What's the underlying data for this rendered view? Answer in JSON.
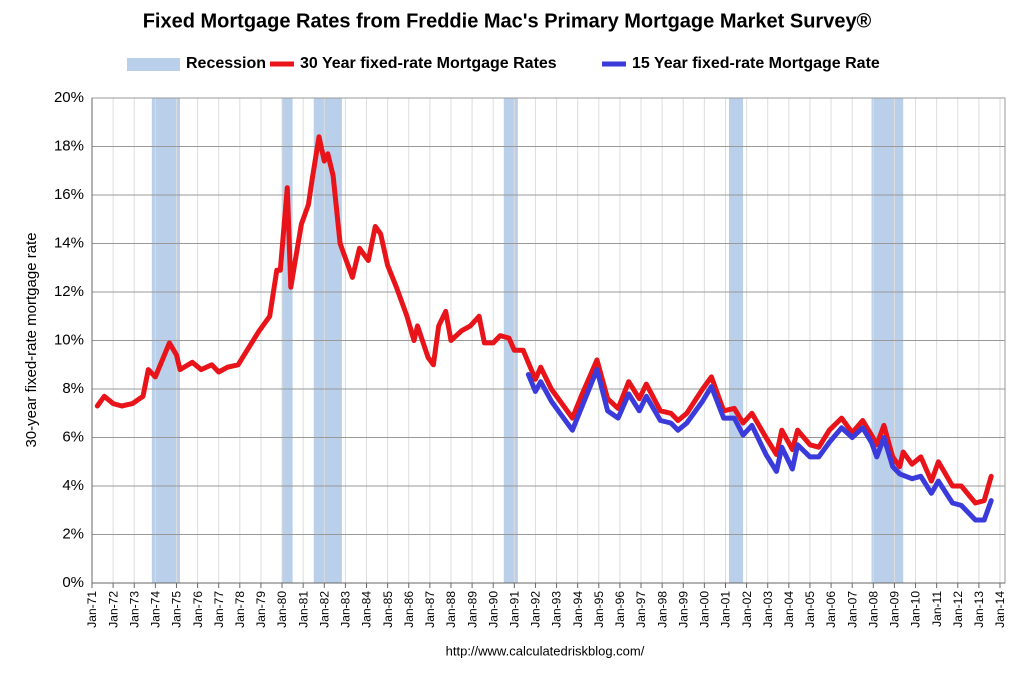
{
  "chart_data": {
    "type": "line",
    "title": "Fixed Mortgage Rates from Freddie Mac's Primary Mortgage Market Survey®",
    "y_axis_label": "30-year fixed-rate mortgage rate",
    "source": "http://www.calculatedriskblog.com/",
    "recession_label": "Recession",
    "recession_color": "#b9cfea",
    "recessions": [
      [
        "1973-11",
        "1975-03"
      ],
      [
        "1980-01",
        "1980-07"
      ],
      [
        "1981-07",
        "1982-11"
      ],
      [
        "1990-07",
        "1991-03"
      ],
      [
        "2001-03",
        "2001-11"
      ],
      [
        "2007-12",
        "2009-06"
      ]
    ],
    "grid": true,
    "xlim": [
      "1971-01",
      "2014-01"
    ],
    "ylim": [
      0,
      20
    ],
    "yticks": [
      {
        "value": 0,
        "label": "0%"
      },
      {
        "value": 2,
        "label": "2%"
      },
      {
        "value": 4,
        "label": "4%"
      },
      {
        "value": 6,
        "label": "6%"
      },
      {
        "value": 8,
        "label": "8%"
      },
      {
        "value": 10,
        "label": "10%"
      },
      {
        "value": 12,
        "label": "12%"
      },
      {
        "value": 14,
        "label": "14%"
      },
      {
        "value": 16,
        "label": "16%"
      },
      {
        "value": 18,
        "label": "18%"
      },
      {
        "value": 20,
        "label": "20%"
      }
    ],
    "xticks": [
      {
        "value": "1971-01",
        "label": "Jan-71"
      },
      {
        "value": "1972-01",
        "label": "Jan-72"
      },
      {
        "value": "1973-01",
        "label": "Jan-73"
      },
      {
        "value": "1974-01",
        "label": "Jan-74"
      },
      {
        "value": "1975-01",
        "label": "Jan-75"
      },
      {
        "value": "1976-01",
        "label": "Jan-76"
      },
      {
        "value": "1977-01",
        "label": "Jan-77"
      },
      {
        "value": "1978-01",
        "label": "Jan-78"
      },
      {
        "value": "1979-01",
        "label": "Jan-79"
      },
      {
        "value": "1980-01",
        "label": "Jan-80"
      },
      {
        "value": "1981-01",
        "label": "Jan-81"
      },
      {
        "value": "1982-01",
        "label": "Jan-82"
      },
      {
        "value": "1983-01",
        "label": "Jan-83"
      },
      {
        "value": "1984-01",
        "label": "Jan-84"
      },
      {
        "value": "1985-01",
        "label": "Jan-85"
      },
      {
        "value": "1986-01",
        "label": "Jan-86"
      },
      {
        "value": "1987-01",
        "label": "Jan-87"
      },
      {
        "value": "1988-01",
        "label": "Jan-88"
      },
      {
        "value": "1989-01",
        "label": "Jan-89"
      },
      {
        "value": "1990-01",
        "label": "Jan-90"
      },
      {
        "value": "1991-01",
        "label": "Jan-91"
      },
      {
        "value": "1992-01",
        "label": "Jan-92"
      },
      {
        "value": "1993-01",
        "label": "Jan-93"
      },
      {
        "value": "1994-01",
        "label": "Jan-94"
      },
      {
        "value": "1995-01",
        "label": "Jan-95"
      },
      {
        "value": "1996-01",
        "label": "Jan-96"
      },
      {
        "value": "1997-01",
        "label": "Jan-97"
      },
      {
        "value": "1998-01",
        "label": "Jan-98"
      },
      {
        "value": "1999-01",
        "label": "Jan-99"
      },
      {
        "value": "2000-01",
        "label": "Jan-00"
      },
      {
        "value": "2001-01",
        "label": "Jan-01"
      },
      {
        "value": "2002-01",
        "label": "Jan-02"
      },
      {
        "value": "2003-01",
        "label": "Jan-03"
      },
      {
        "value": "2004-01",
        "label": "Jan-04"
      },
      {
        "value": "2005-01",
        "label": "Jan-05"
      },
      {
        "value": "2006-01",
        "label": "Jan-06"
      },
      {
        "value": "2007-01",
        "label": "Jan-07"
      },
      {
        "value": "2008-01",
        "label": "Jan-08"
      },
      {
        "value": "2009-01",
        "label": "Jan-09"
      },
      {
        "value": "2010-01",
        "label": "Jan-10"
      },
      {
        "value": "2011-01",
        "label": "Jan-11"
      },
      {
        "value": "2012-01",
        "label": "Jan-12"
      },
      {
        "value": "2013-01",
        "label": "Jan-13"
      },
      {
        "value": "2014-01",
        "label": "Jan-14"
      }
    ],
    "series": [
      {
        "name": "30 Year fixed-rate Mortgage Rates",
        "color": "#e8141a",
        "x": [
          "1971-04",
          "1971-08",
          "1972-01",
          "1972-06",
          "1972-12",
          "1973-06",
          "1973-09",
          "1974-01",
          "1974-09",
          "1975-01",
          "1975-03",
          "1975-10",
          "1976-03",
          "1976-09",
          "1977-01",
          "1977-06",
          "1977-12",
          "1978-06",
          "1978-12",
          "1979-06",
          "1979-10",
          "1979-12",
          "1980-04",
          "1980-06",
          "1980-12",
          "1981-04",
          "1981-06",
          "1981-10",
          "1982-01",
          "1982-03",
          "1982-06",
          "1982-10",
          "1982-12",
          "1983-05",
          "1983-09",
          "1984-02",
          "1984-06",
          "1984-09",
          "1985-01",
          "1985-06",
          "1985-12",
          "1986-04",
          "1986-06",
          "1986-12",
          "1987-03",
          "1987-06",
          "1987-10",
          "1988-01",
          "1988-07",
          "1988-12",
          "1989-05",
          "1989-08",
          "1990-01",
          "1990-05",
          "1990-10",
          "1991-01",
          "1991-06",
          "1992-01",
          "1992-04",
          "1992-10",
          "1993-03",
          "1993-10",
          "1994-03",
          "1994-12",
          "1995-06",
          "1995-12",
          "1996-06",
          "1996-12",
          "1997-04",
          "1997-12",
          "1998-06",
          "1998-10",
          "1999-03",
          "1999-12",
          "2000-05",
          "2000-12",
          "2001-06",
          "2001-11",
          "2002-04",
          "2002-12",
          "2003-06",
          "2003-09",
          "2004-03",
          "2004-06",
          "2005-01",
          "2005-06",
          "2005-12",
          "2006-07",
          "2007-01",
          "2007-07",
          "2007-12",
          "2008-03",
          "2008-07",
          "2008-12",
          "2009-04",
          "2009-06",
          "2009-11",
          "2010-04",
          "2010-10",
          "2011-02",
          "2011-10",
          "2012-03",
          "2012-11",
          "2013-04",
          "2013-08"
        ],
        "values": [
          7.3,
          7.7,
          7.4,
          7.3,
          7.4,
          7.7,
          8.8,
          8.5,
          9.9,
          9.4,
          8.8,
          9.1,
          8.8,
          9.0,
          8.7,
          8.9,
          9.0,
          9.7,
          10.4,
          11.0,
          12.9,
          12.9,
          16.3,
          12.2,
          14.8,
          15.6,
          16.6,
          18.4,
          17.4,
          17.7,
          16.8,
          14.0,
          13.6,
          12.6,
          13.8,
          13.3,
          14.7,
          14.4,
          13.1,
          12.2,
          11.0,
          10.0,
          10.6,
          9.3,
          9.0,
          10.6,
          11.2,
          10.0,
          10.4,
          10.6,
          11.0,
          9.9,
          9.9,
          10.2,
          10.1,
          9.6,
          9.6,
          8.4,
          8.9,
          8.0,
          7.5,
          6.8,
          7.7,
          9.2,
          7.6,
          7.2,
          8.3,
          7.6,
          8.2,
          7.1,
          7.0,
          6.7,
          7.0,
          8.0,
          8.5,
          7.1,
          7.2,
          6.6,
          7.0,
          6.0,
          5.3,
          6.3,
          5.5,
          6.3,
          5.7,
          5.6,
          6.3,
          6.8,
          6.2,
          6.7,
          6.1,
          5.7,
          6.5,
          5.2,
          4.8,
          5.4,
          4.9,
          5.2,
          4.2,
          5.0,
          4.0,
          4.0,
          3.3,
          3.4,
          4.4
        ]
      },
      {
        "name": "15 Year fixed-rate Mortgage Rate",
        "color": "#3b3bdb",
        "x": [
          "1991-09",
          "1992-01",
          "1992-04",
          "1992-10",
          "1993-03",
          "1993-10",
          "1994-03",
          "1994-12",
          "1995-06",
          "1995-12",
          "1996-06",
          "1996-12",
          "1997-04",
          "1997-12",
          "1998-06",
          "1998-10",
          "1999-03",
          "1999-12",
          "2000-05",
          "2000-12",
          "2001-06",
          "2001-11",
          "2002-04",
          "2002-12",
          "2003-06",
          "2003-09",
          "2004-03",
          "2004-06",
          "2005-01",
          "2005-06",
          "2005-12",
          "2006-07",
          "2007-01",
          "2007-07",
          "2007-12",
          "2008-03",
          "2008-07",
          "2008-12",
          "2009-04",
          "2009-11",
          "2010-04",
          "2010-10",
          "2011-02",
          "2011-10",
          "2012-03",
          "2012-11",
          "2013-04",
          "2013-08"
        ],
        "values": [
          8.6,
          7.9,
          8.3,
          7.5,
          7.0,
          6.3,
          7.2,
          8.8,
          7.1,
          6.8,
          7.8,
          7.1,
          7.7,
          6.7,
          6.6,
          6.3,
          6.6,
          7.5,
          8.1,
          6.8,
          6.8,
          6.1,
          6.5,
          5.3,
          4.6,
          5.6,
          4.7,
          5.7,
          5.2,
          5.2,
          5.8,
          6.4,
          6.0,
          6.4,
          5.8,
          5.2,
          6.0,
          4.8,
          4.5,
          4.3,
          4.4,
          3.7,
          4.2,
          3.3,
          3.2,
          2.6,
          2.6,
          3.4
        ]
      }
    ]
  }
}
